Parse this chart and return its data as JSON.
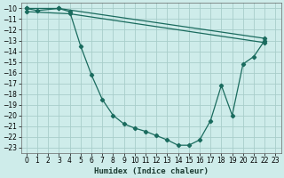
{
  "xlabel": "Humidex (Indice chaleur)",
  "background_color": "#ceecea",
  "grid_color": "#a8ceca",
  "line_color": "#1a6b5e",
  "ylim": [
    -23.5,
    -9.5
  ],
  "xlim": [
    -0.5,
    23.5
  ],
  "yticks": [
    -10,
    -11,
    -12,
    -13,
    -14,
    -15,
    -16,
    -17,
    -18,
    -19,
    -20,
    -21,
    -22,
    -23
  ],
  "xticks": [
    0,
    1,
    2,
    3,
    4,
    5,
    6,
    7,
    8,
    9,
    10,
    11,
    12,
    13,
    14,
    15,
    16,
    17,
    18,
    19,
    20,
    21,
    22,
    23
  ],
  "curve_x": [
    0,
    1,
    3,
    4,
    5,
    6,
    7,
    8,
    9,
    10,
    11,
    12,
    13,
    14,
    15,
    16,
    17,
    18,
    19,
    20,
    21,
    22
  ],
  "curve_y": [
    -10.0,
    -10.2,
    -10.0,
    -10.3,
    -13.5,
    -16.2,
    -18.5,
    -20.0,
    -20.8,
    -21.2,
    -21.5,
    -21.9,
    -22.3,
    -22.8,
    -22.8,
    -22.3,
    -20.5,
    -17.2,
    -20.0,
    -15.2,
    -14.5,
    -13.0
  ],
  "line1_x": [
    0,
    3,
    22
  ],
  "line1_y": [
    -10.0,
    -10.0,
    -12.8
  ],
  "line2_x": [
    0,
    4,
    22
  ],
  "line2_y": [
    -10.3,
    -10.5,
    -13.2
  ],
  "figsize": [
    3.2,
    2.0
  ],
  "dpi": 100,
  "tick_labelsize": 5.5,
  "xlabel_fontsize": 6.5,
  "linewidth": 0.9,
  "markersize": 2.2
}
